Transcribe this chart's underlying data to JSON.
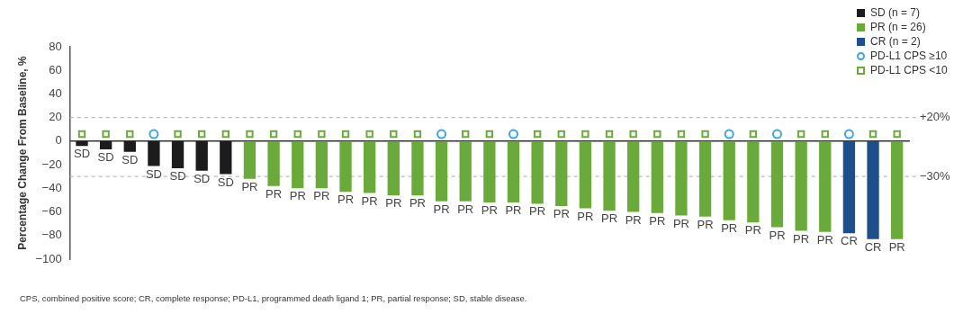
{
  "chart_data": {
    "type": "bar",
    "ylabel": "Percentage Change From Baseline, %",
    "categories": [
      null,
      null,
      null,
      null,
      null,
      null,
      null,
      null,
      null,
      null,
      null,
      null,
      null,
      null,
      null,
      null,
      null,
      null,
      null,
      null,
      null,
      null,
      null,
      null,
      null,
      null,
      null,
      null,
      null,
      null,
      null,
      null,
      null,
      null,
      null
    ],
    "series": [
      {
        "name": "SD (n = 7)",
        "color": "#1c1c1c",
        "values": [
          -4,
          -7,
          -9,
          -21,
          -23,
          -25,
          -28,
          null,
          null,
          null,
          null,
          null,
          null,
          null,
          null,
          null,
          null,
          null,
          null,
          null,
          null,
          null,
          null,
          null,
          null,
          null,
          null,
          null,
          null,
          null,
          null,
          null,
          null,
          null,
          null
        ],
        "value_labels": [
          "SD",
          "SD",
          "SD",
          "SD",
          "SD",
          "SD",
          "SD",
          null,
          null,
          null,
          null,
          null,
          null,
          null,
          null,
          null,
          null,
          null,
          null,
          null,
          null,
          null,
          null,
          null,
          null,
          null,
          null,
          null,
          null,
          null,
          null,
          null,
          null,
          null,
          null
        ]
      },
      {
        "name": "PR (n = 26)",
        "color": "#6aaa3a",
        "values": [
          null,
          null,
          null,
          null,
          null,
          null,
          null,
          -32,
          -38,
          -40,
          -40,
          -43,
          -44,
          -46,
          -46,
          -51,
          -51,
          -52,
          -52,
          -53,
          -55,
          -57,
          -59,
          -60,
          -61,
          -63,
          -64,
          -67,
          -69,
          -73,
          -76,
          -77,
          null,
          null,
          -83
        ],
        "value_labels": [
          null,
          null,
          null,
          null,
          null,
          null,
          null,
          "PR",
          "PR",
          "PR",
          "PR",
          "PR",
          "PR",
          "PR",
          "PR",
          "PR",
          "PR",
          "PR",
          "PR",
          "PR",
          "PR",
          "PR",
          "PR",
          "PR",
          "PR",
          "PR",
          "PR",
          "PR",
          "PR",
          "PR",
          "PR",
          "PR",
          null,
          null,
          "PR"
        ]
      },
      {
        "name": "CR (n = 2)",
        "color": "#1f4e8c",
        "values": [
          null,
          null,
          null,
          null,
          null,
          null,
          null,
          null,
          null,
          null,
          null,
          null,
          null,
          null,
          null,
          null,
          null,
          null,
          null,
          null,
          null,
          null,
          null,
          null,
          null,
          null,
          null,
          null,
          null,
          null,
          null,
          null,
          -78,
          -83,
          null
        ],
        "value_labels": [
          null,
          null,
          null,
          null,
          null,
          null,
          null,
          null,
          null,
          null,
          null,
          null,
          null,
          null,
          null,
          null,
          null,
          null,
          null,
          null,
          null,
          null,
          null,
          null,
          null,
          null,
          null,
          null,
          null,
          null,
          null,
          null,
          "CR",
          "CR",
          null
        ]
      },
      {
        "name": "PD-L1 CPS ≥10",
        "type": "scatter",
        "marker": "circle",
        "color": "#3aa6dd",
        "values": [
          null,
          null,
          null,
          6,
          null,
          null,
          null,
          null,
          null,
          null,
          null,
          null,
          null,
          null,
          null,
          6,
          null,
          null,
          6,
          null,
          null,
          null,
          null,
          null,
          null,
          null,
          null,
          6,
          null,
          6,
          null,
          null,
          6,
          null,
          null
        ]
      },
      {
        "name": "PD-L1 CPS <10",
        "type": "scatter",
        "marker": "square",
        "color": "#6aaa3a",
        "values": [
          6,
          6,
          6,
          null,
          6,
          6,
          6,
          6,
          6,
          6,
          6,
          6,
          6,
          6,
          6,
          null,
          6,
          6,
          null,
          6,
          6,
          6,
          6,
          6,
          6,
          6,
          6,
          null,
          6,
          null,
          6,
          6,
          null,
          6,
          6
        ]
      }
    ],
    "ylim": [
      -100,
      80
    ],
    "yticks": [
      -100,
      -80,
      -60,
      -40,
      -20,
      0,
      20,
      40,
      60,
      80
    ],
    "ref_lines": [
      {
        "axis": "y",
        "value": 20,
        "label": "+20%",
        "color": "#bbbbbb",
        "line_style": "dashed"
      },
      {
        "axis": "y",
        "value": -30,
        "label": "−30%",
        "color": "#bbbbbb",
        "line_style": "dashed"
      }
    ],
    "grid": false,
    "legend": "top right",
    "annotations": [
      "CPS, combined positive score; CR, complete response; PD-L1, programmed death ligand 1; PR, partial response; SD, stable disease."
    ]
  }
}
